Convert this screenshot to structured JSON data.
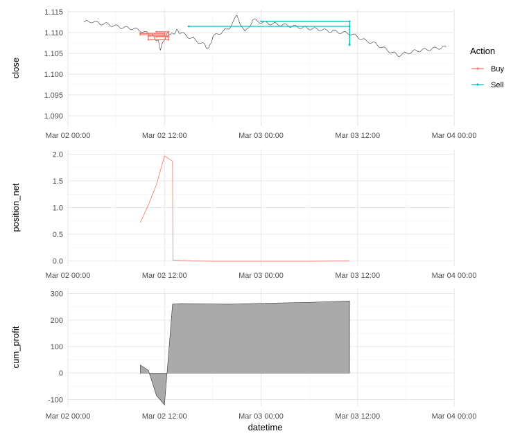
{
  "chart_data": [
    {
      "type": "line",
      "panel": "price",
      "ylabel": "close",
      "ylim": [
        1.0875,
        1.1155
      ],
      "yticks": [
        1.09,
        1.095,
        1.1,
        1.105,
        1.11,
        1.115
      ],
      "ytick_labels": [
        "1.090",
        "1.095",
        "1.100",
        "1.105",
        "1.110",
        "1.115"
      ],
      "xlim_hours": [
        0,
        48
      ],
      "xticks": [
        "Mar 02 00:00",
        "Mar 02 12:00",
        "Mar 03 00:00",
        "Mar 03 12:00",
        "Mar 04 00:00"
      ],
      "grid": true,
      "series": [
        {
          "color": "#333333",
          "x_hours": [
            2.0,
            3.0,
            4.0,
            5.0,
            6.0,
            7.0,
            8.0,
            9.0,
            10.0,
            10.6,
            11.2,
            11.5,
            12.0,
            12.5,
            13.0,
            13.5,
            14.0,
            15.0,
            16.0,
            17.0,
            17.5,
            18.0,
            19.0,
            20.0,
            21.0,
            22.0,
            23.0,
            24.0,
            25.0,
            26.0,
            27.0,
            28.0,
            29.0,
            30.0,
            31.0,
            32.0,
            33.0,
            34.0,
            35.0,
            36.0,
            37.0,
            38.0,
            39.0,
            40.0,
            41.0,
            42.0,
            43.0,
            44.0,
            45.0,
            46.0,
            47.0
          ],
          "values": [
            1.1125,
            1.1127,
            1.1122,
            1.112,
            1.1115,
            1.1112,
            1.111,
            1.1105,
            1.1097,
            1.109,
            1.108,
            1.106,
            1.1085,
            1.11,
            1.1095,
            1.1105,
            1.11,
            1.109,
            1.108,
            1.107,
            1.106,
            1.109,
            1.11,
            1.111,
            1.114,
            1.11,
            1.113,
            1.1125,
            1.1122,
            1.112,
            1.1118,
            1.1115,
            1.1112,
            1.111,
            1.1108,
            1.1105,
            1.1103,
            1.11,
            1.1098,
            1.109,
            1.108,
            1.1075,
            1.1065,
            1.1055,
            1.1045,
            1.105,
            1.1055,
            1.1058,
            1.106,
            1.1063,
            1.1065
          ]
        }
      ],
      "trades": [
        {
          "action": "Buy",
          "color": "#F8766D",
          "x_hours": [
            9.0,
            12.0,
            12.0,
            9.0,
            9.0
          ],
          "values": [
            1.1098,
            1.1098,
            1.1095,
            1.1095,
            1.1098
          ]
        },
        {
          "action": "Buy",
          "color": "#F8766D",
          "x_hours": [
            10.0,
            12.5,
            12.5,
            10.0,
            10.0
          ],
          "values": [
            1.1092,
            1.1092,
            1.1083,
            1.1083,
            1.1092
          ]
        },
        {
          "action": "Buy",
          "color": "#F8766D",
          "x_hours": [
            11.0,
            12.5,
            12.5,
            11.0
          ],
          "values": [
            1.109,
            1.109,
            1.1102,
            1.1102
          ]
        },
        {
          "action": "Sell",
          "color": "#00BFC4",
          "x_hours": [
            15.0,
            35.0,
            35.0
          ],
          "values": [
            1.1115,
            1.1115,
            1.107
          ]
        },
        {
          "action": "Sell",
          "color": "#00BFC4",
          "x_hours": [
            24.0,
            35.0,
            35.0
          ],
          "values": [
            1.1127,
            1.1127,
            1.1072
          ]
        }
      ],
      "legend": {
        "title": "Action",
        "entries": [
          "Buy",
          "Sell"
        ],
        "colors": [
          "#F8766D",
          "#00BFC4"
        ],
        "placement": "right"
      }
    },
    {
      "type": "line",
      "panel": "position",
      "ylabel": "position_net",
      "ylim": [
        -0.1,
        2.1
      ],
      "yticks": [
        0.0,
        0.5,
        1.0,
        1.5,
        2.0
      ],
      "ytick_labels": [
        "0.0",
        "0.5",
        "1.0",
        "1.5",
        "2.0"
      ],
      "xlim_hours": [
        0,
        48
      ],
      "xticks": [
        "Mar 02 00:00",
        "Mar 02 12:00",
        "Mar 03 00:00",
        "Mar 03 12:00",
        "Mar 04 00:00"
      ],
      "grid": true,
      "series": [
        {
          "color": "#F8766D",
          "x_hours": [
            9.0,
            10.0,
            11.0,
            12.0,
            13.0,
            13.05,
            18.0,
            24.0,
            30.0,
            35.0
          ],
          "values": [
            0.72,
            1.05,
            1.43,
            1.97,
            1.87,
            0.01,
            -0.01,
            -0.01,
            -0.01,
            0.0
          ]
        }
      ]
    },
    {
      "type": "area",
      "panel": "profit",
      "ylabel": "cum_profit",
      "xlabel": "datetime",
      "ylim": [
        -125,
        320
      ],
      "yticks": [
        -100,
        0,
        100,
        200,
        300
      ],
      "ytick_labels": [
        "-100",
        "0",
        "100",
        "200",
        "300"
      ],
      "xlim_hours": [
        0,
        48
      ],
      "xticks": [
        "Mar 02 00:00",
        "Mar 02 12:00",
        "Mar 03 00:00",
        "Mar 03 12:00",
        "Mar 04 00:00"
      ],
      "grid": true,
      "series": [
        {
          "color": "#aaaaaa",
          "x_hours": [
            9.0,
            10.0,
            11.0,
            12.0,
            13.0,
            14.0,
            20.0,
            24.0,
            30.0,
            35.0
          ],
          "values": [
            30,
            10,
            -85,
            -120,
            260,
            262,
            260,
            263,
            267,
            272
          ]
        }
      ]
    }
  ]
}
